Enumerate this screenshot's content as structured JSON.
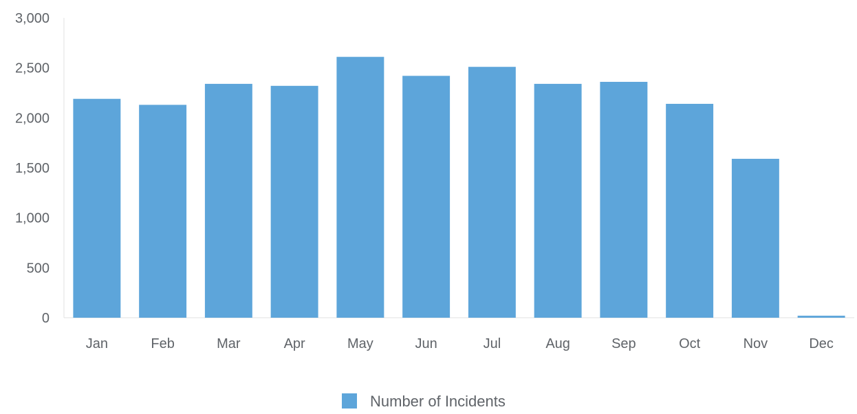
{
  "chart_data": {
    "type": "bar",
    "categories": [
      "Jan",
      "Feb",
      "Mar",
      "Apr",
      "May",
      "Jun",
      "Jul",
      "Aug",
      "Sep",
      "Oct",
      "Nov",
      "Dec"
    ],
    "series": [
      {
        "name": "Number of Incidents",
        "color": "#5da5da",
        "values": [
          2190,
          2130,
          2340,
          2320,
          2610,
          2420,
          2510,
          2340,
          2360,
          2140,
          1590,
          20
        ]
      }
    ],
    "y_ticks": [
      "0",
      "500",
      "1,000",
      "1,500",
      "2,000",
      "2,500",
      "3,000"
    ],
    "ylim": [
      0,
      3000
    ],
    "grid": false,
    "legend_position": "bottom-center",
    "title": "",
    "xlabel": "",
    "ylabel": ""
  }
}
